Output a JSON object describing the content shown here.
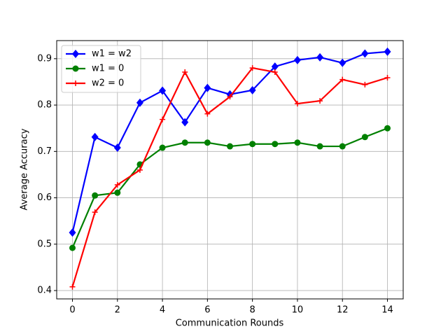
{
  "chart_data": {
    "type": "line",
    "x_label": "Communication Rounds",
    "y_label": "Average Accuracy",
    "x": [
      0,
      1,
      2,
      3,
      4,
      5,
      6,
      7,
      8,
      9,
      10,
      11,
      12,
      13,
      14
    ],
    "series": [
      {
        "name": "w1 = w2",
        "color": "#0000ff",
        "marker": "diamond",
        "values": [
          0.525,
          0.731,
          0.708,
          0.805,
          0.831,
          0.763,
          0.837,
          0.823,
          0.832,
          0.883,
          0.897,
          0.903,
          0.891,
          0.911,
          0.915
        ]
      },
      {
        "name": "w1 = 0",
        "color": "#008000",
        "marker": "circle",
        "values": [
          0.492,
          0.605,
          0.611,
          0.672,
          0.708,
          0.719,
          0.719,
          0.711,
          0.716,
          0.716,
          0.719,
          0.711,
          0.711,
          0.731,
          0.75
        ]
      },
      {
        "name": "w2 = 0",
        "color": "#ff0000",
        "marker": "plus",
        "values": [
          0.408,
          0.569,
          0.628,
          0.66,
          0.769,
          0.871,
          0.781,
          0.818,
          0.88,
          0.871,
          0.803,
          0.809,
          0.855,
          0.844,
          0.859
        ]
      }
    ],
    "xlim": [
      -0.7,
      14.7
    ],
    "ylim": [
      0.382,
      0.939
    ],
    "xticks": [
      0,
      2,
      4,
      6,
      8,
      10,
      12,
      14
    ],
    "yticks": [
      0.4,
      0.5,
      0.6,
      0.7,
      0.8,
      0.9
    ],
    "grid": true,
    "legend": "upper-left"
  }
}
